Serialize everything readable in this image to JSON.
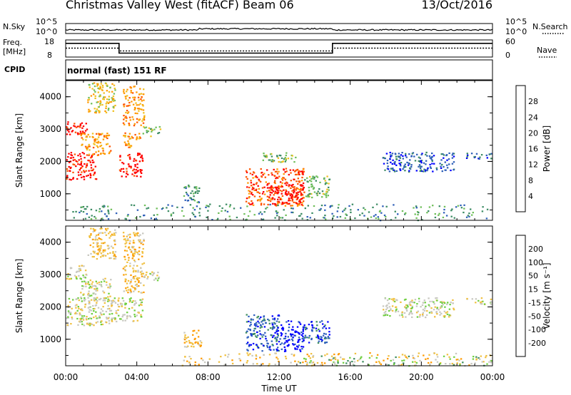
{
  "header": {
    "title": "Christmas Valley West (fitACF)",
    "beam": "Beam 06",
    "date": "13/Oct/2016"
  },
  "noise_panel": {
    "left_label": "N.Sky",
    "left_ticks": [
      "10^5",
      "10^0"
    ],
    "right_ticks": [
      "10^5",
      "10^0"
    ],
    "right_label": "N.Search"
  },
  "freq_panel": {
    "left_label_1": "Freq.",
    "left_label_2": "[MHz]",
    "left_ticks": [
      "18",
      "8"
    ],
    "right_ticks": [
      "60",
      "0"
    ],
    "right_label": "Nave"
  },
  "cpid": {
    "label": "CPID",
    "value": "normal (fast) 151 RF"
  },
  "colors": {
    "power": [
      "#0000ff",
      "#2e5fb8",
      "#3c8c64",
      "#6fbf5a",
      "#f0c020",
      "#ff9900",
      "#ff5500",
      "#ff0000"
    ],
    "velocity": [
      "#ff0000",
      "#ff5a00",
      "#ff9a00",
      "#f0c040",
      "#c8c8c0",
      "#6fcf3f",
      "#3f8f5f",
      "#2f5fbf",
      "#0000ff"
    ]
  },
  "chart_data": [
    {
      "type": "heatmap",
      "name": "power-panel",
      "ylabel": "Slant Range [km]",
      "yticks": [
        1000,
        2000,
        3000,
        4000
      ],
      "ylim": [
        180,
        4500
      ],
      "xticks": [
        "00:00",
        "04:00",
        "08:00",
        "12:00",
        "16:00",
        "20:00",
        "00:00"
      ],
      "xlim_hours": [
        0,
        24
      ],
      "colorbar_label": "Power [dB]",
      "colorbar_ticks": [
        "4",
        "8",
        "12",
        "16",
        "20",
        "24",
        "28"
      ],
      "regions": [
        {
          "t0": 0.0,
          "t1": 1.7,
          "r0": 1450,
          "r1": 2300,
          "level": 7
        },
        {
          "t0": 0.0,
          "t1": 1.2,
          "r0": 2850,
          "r1": 3300,
          "level": 7
        },
        {
          "t0": 0.8,
          "t1": 2.5,
          "r0": 2200,
          "r1": 2900,
          "level": 5
        },
        {
          "t0": 1.2,
          "t1": 2.8,
          "r0": 3500,
          "r1": 4450,
          "level": 4
        },
        {
          "t0": 3.0,
          "t1": 4.3,
          "r0": 1550,
          "r1": 2300,
          "level": 7
        },
        {
          "t0": 3.2,
          "t1": 4.2,
          "r0": 2450,
          "r1": 2900,
          "level": 5
        },
        {
          "t0": 3.2,
          "t1": 4.4,
          "r0": 3100,
          "r1": 4350,
          "level": 5
        },
        {
          "t0": 4.3,
          "t1": 5.3,
          "r0": 2800,
          "r1": 3100,
          "level": 3
        },
        {
          "t0": 6.6,
          "t1": 7.6,
          "r0": 750,
          "r1": 1300,
          "level": 2
        },
        {
          "t0": 10.1,
          "t1": 13.4,
          "r0": 650,
          "r1": 1800,
          "level": 6
        },
        {
          "t0": 11.4,
          "t1": 13.3,
          "r0": 700,
          "r1": 1300,
          "level": 7
        },
        {
          "t0": 13.4,
          "t1": 14.8,
          "r0": 900,
          "r1": 1600,
          "level": 3
        },
        {
          "t0": 11.0,
          "t1": 13.0,
          "r0": 2000,
          "r1": 2300,
          "level": 3
        },
        {
          "t0": 17.8,
          "t1": 21.8,
          "r0": 1700,
          "r1": 2300,
          "level": 1
        },
        {
          "t0": 22.5,
          "t1": 23.9,
          "r0": 2100,
          "r1": 2300,
          "level": 1
        },
        {
          "t0": 0.3,
          "t1": 24.0,
          "r0": 200,
          "r1": 700,
          "level": 2
        }
      ]
    },
    {
      "type": "heatmap",
      "name": "velocity-panel",
      "ylabel": "Slant Range [km]",
      "yticks": [
        1000,
        2000,
        3000,
        4000
      ],
      "ylim": [
        180,
        4500
      ],
      "xticks": [
        "00:00",
        "04:00",
        "08:00",
        "12:00",
        "16:00",
        "20:00",
        "00:00"
      ],
      "xlim_hours": [
        0,
        24
      ],
      "xlabel": "Time UT",
      "colorbar_label": "Velocity [m s^-1]",
      "colorbar_ticks": [
        "200",
        "100",
        "50",
        "15",
        "-15",
        "-50",
        "-100",
        "-200"
      ],
      "regions": [
        {
          "t0": 0.0,
          "t1": 2.5,
          "r0": 1450,
          "r1": 2300,
          "level": 4
        },
        {
          "t0": 0.0,
          "t1": 1.2,
          "r0": 2850,
          "r1": 3300,
          "level": 4
        },
        {
          "t0": 0.8,
          "t1": 2.5,
          "r0": 2200,
          "r1": 2900,
          "level": 4
        },
        {
          "t0": 1.2,
          "t1": 2.8,
          "r0": 3500,
          "r1": 4450,
          "level": 3
        },
        {
          "t0": 2.5,
          "t1": 4.3,
          "r0": 1550,
          "r1": 2300,
          "level": 4
        },
        {
          "t0": 3.2,
          "t1": 4.4,
          "r0": 2450,
          "r1": 4350,
          "level": 3
        },
        {
          "t0": 4.3,
          "t1": 5.3,
          "r0": 2800,
          "r1": 3100,
          "level": 4
        },
        {
          "t0": 6.6,
          "t1": 7.6,
          "r0": 750,
          "r1": 1300,
          "level": 3
        },
        {
          "t0": 10.1,
          "t1": 12.0,
          "r0": 650,
          "r1": 1800,
          "level": 7
        },
        {
          "t0": 11.8,
          "t1": 13.4,
          "r0": 650,
          "r1": 1600,
          "level": 8
        },
        {
          "t0": 13.4,
          "t1": 14.8,
          "r0": 900,
          "r1": 1600,
          "level": 7
        },
        {
          "t0": 17.8,
          "t1": 21.8,
          "r0": 1700,
          "r1": 2300,
          "level": 4
        },
        {
          "t0": 22.5,
          "t1": 23.9,
          "r0": 2100,
          "r1": 2300,
          "level": 4
        },
        {
          "t0": 6.5,
          "t1": 24.0,
          "r0": 200,
          "r1": 600,
          "level": 3
        },
        {
          "t0": 13.0,
          "t1": 24.0,
          "r0": 200,
          "r1": 500,
          "level": 5
        }
      ]
    }
  ]
}
